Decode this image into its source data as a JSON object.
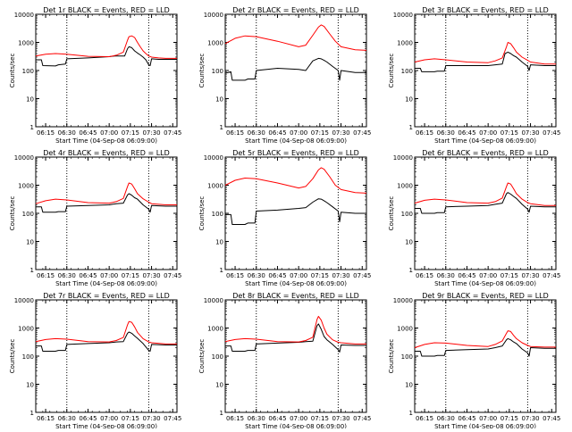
{
  "chart_data": {
    "type": "line",
    "yscale": "log",
    "ylim": [
      1,
      10000
    ],
    "yticks": [
      "1",
      "10",
      "100",
      "1000",
      "10000"
    ],
    "xlim": [
      "06:08",
      "07:48"
    ],
    "xticks": [
      "06:15",
      "06:30",
      "06:45",
      "07:00",
      "07:15",
      "07:30",
      "07:45"
    ],
    "ylabel": "Counts/sec",
    "xlabel": "Start Time (04-Sep-08 06:09:00)",
    "colors": {
      "black": "#000000",
      "red": "#ff0000",
      "vline": "#000000"
    },
    "panels": [
      {
        "title": "Det 1r BLACK = Events, RED = LLD",
        "vlines": [
          "06:30",
          "07:28"
        ],
        "series": [
          {
            "color": "black",
            "x": [
              "06:08",
              "06:12",
              "06:13",
              "06:22",
              "06:24",
              "06:29",
              "06:30",
              "06:45",
              "07:00",
              "07:04",
              "07:08",
              "07:11",
              "07:13",
              "07:14",
              "07:16",
              "07:18",
              "07:20",
              "07:22",
              "07:24",
              "07:26",
              "07:28",
              "07:29",
              "07:30",
              "07:35",
              "07:40",
              "07:48"
            ],
            "y": [
              240,
              240,
              150,
              145,
              160,
              170,
              260,
              280,
              310,
              330,
              330,
              330,
              600,
              700,
              650,
              500,
              420,
              360,
              300,
              240,
              160,
              150,
              260,
              250,
              250,
              250
            ]
          },
          {
            "color": "red",
            "x": [
              "06:08",
              "06:15",
              "06:22",
              "06:30",
              "06:45",
              "07:00",
              "07:05",
              "07:10",
              "07:13",
              "07:14",
              "07:16",
              "07:18",
              "07:20",
              "07:22",
              "07:24",
              "07:26",
              "07:28",
              "07:30",
              "07:35",
              "07:40",
              "07:48"
            ],
            "y": [
              330,
              380,
              400,
              380,
              320,
              310,
              350,
              450,
              1200,
              1600,
              1700,
              1500,
              1000,
              700,
              500,
              400,
              330,
              300,
              280,
              270,
              270
            ]
          }
        ]
      },
      {
        "title": "Det 2r BLACK = Events, RED = LLD",
        "vlines": [
          "06:30",
          "07:28"
        ],
        "series": [
          {
            "color": "black",
            "x": [
              "06:08",
              "06:12",
              "06:13",
              "06:22",
              "06:24",
              "06:29",
              "06:30",
              "06:45",
              "07:00",
              "07:05",
              "07:10",
              "07:14",
              "07:16",
              "07:18",
              "07:20",
              "07:24",
              "07:28",
              "07:29",
              "07:30",
              "07:40",
              "07:48"
            ],
            "y": [
              80,
              90,
              45,
              45,
              50,
              50,
              100,
              120,
              110,
              100,
              220,
              270,
              260,
              230,
              200,
              140,
              100,
              45,
              100,
              85,
              85
            ]
          },
          {
            "color": "red",
            "x": [
              "06:08",
              "06:15",
              "06:22",
              "06:30",
              "06:45",
              "07:00",
              "07:05",
              "07:10",
              "07:14",
              "07:16",
              "07:18",
              "07:22",
              "07:26",
              "07:30",
              "07:40",
              "07:48"
            ],
            "y": [
              900,
              1400,
              1700,
              1600,
              1100,
              700,
              800,
              1800,
              3500,
              4200,
              3700,
              2000,
              1100,
              700,
              550,
              520
            ]
          }
        ]
      },
      {
        "title": "Det 3r BLACK = Events, RED = LLD",
        "vlines": [
          "06:30",
          "07:28"
        ],
        "series": [
          {
            "color": "black",
            "x": [
              "06:08",
              "06:12",
              "06:13",
              "06:22",
              "06:24",
              "06:29",
              "06:30",
              "06:45",
              "07:00",
              "07:05",
              "07:10",
              "07:12",
              "07:14",
              "07:16",
              "07:18",
              "07:20",
              "07:24",
              "07:28",
              "07:29",
              "07:30",
              "07:40",
              "07:48"
            ],
            "y": [
              120,
              120,
              90,
              90,
              95,
              95,
              150,
              150,
              150,
              160,
              170,
              400,
              450,
              400,
              340,
              300,
              200,
              140,
              100,
              160,
              150,
              150
            ]
          },
          {
            "color": "red",
            "x": [
              "06:08",
              "06:15",
              "06:22",
              "06:30",
              "06:45",
              "07:00",
              "07:05",
              "07:10",
              "07:13",
              "07:14",
              "07:16",
              "07:18",
              "07:20",
              "07:24",
              "07:28",
              "07:30",
              "07:40",
              "07:48"
            ],
            "y": [
              200,
              240,
              260,
              240,
              200,
              190,
              220,
              280,
              700,
              1000,
              900,
              650,
              450,
              300,
              230,
              200,
              170,
              170
            ]
          }
        ]
      },
      {
        "title": "Det 4r BLACK = Events, RED = LLD",
        "vlines": [
          "06:30",
          "07:28"
        ],
        "series": [
          {
            "color": "black",
            "x": [
              "06:08",
              "06:12",
              "06:13",
              "06:22",
              "06:24",
              "06:29",
              "06:30",
              "06:45",
              "07:00",
              "07:05",
              "07:10",
              "07:13",
              "07:14",
              "07:16",
              "07:18",
              "07:20",
              "07:24",
              "07:28",
              "07:29",
              "07:30",
              "07:40",
              "07:48"
            ],
            "y": [
              170,
              170,
              110,
              110,
              115,
              115,
              180,
              190,
              200,
              220,
              230,
              450,
              500,
              440,
              360,
              320,
              200,
              140,
              110,
              190,
              180,
              180
            ]
          },
          {
            "color": "red",
            "x": [
              "06:08",
              "06:15",
              "06:22",
              "06:30",
              "06:45",
              "07:00",
              "07:05",
              "07:10",
              "07:13",
              "07:14",
              "07:16",
              "07:18",
              "07:20",
              "07:24",
              "07:28",
              "07:30",
              "07:40",
              "07:48"
            ],
            "y": [
              220,
              280,
              320,
              300,
              240,
              230,
              260,
              340,
              900,
              1200,
              1100,
              750,
              500,
              330,
              250,
              220,
              200,
              200
            ]
          }
        ]
      },
      {
        "title": "Det 5r BLACK = Events, RED = LLD",
        "vlines": [
          "06:30",
          "07:28"
        ],
        "series": [
          {
            "color": "black",
            "x": [
              "06:08",
              "06:12",
              "06:13",
              "06:22",
              "06:24",
              "06:29",
              "06:30",
              "06:45",
              "07:00",
              "07:05",
              "07:10",
              "07:14",
              "07:16",
              "07:18",
              "07:20",
              "07:24",
              "07:28",
              "07:29",
              "07:30",
              "07:40",
              "07:48"
            ],
            "y": [
              90,
              90,
              40,
              40,
              45,
              45,
              120,
              130,
              150,
              160,
              250,
              330,
              320,
              280,
              240,
              170,
              120,
              50,
              110,
              100,
              100
            ]
          },
          {
            "color": "red",
            "x": [
              "06:08",
              "06:15",
              "06:22",
              "06:30",
              "06:45",
              "07:00",
              "07:05",
              "07:10",
              "07:14",
              "07:16",
              "07:18",
              "07:22",
              "07:26",
              "07:30",
              "07:40",
              "07:48"
            ],
            "y": [
              1000,
              1500,
              1800,
              1700,
              1200,
              800,
              900,
              1700,
              3500,
              4200,
              3700,
              2000,
              1000,
              700,
              550,
              520
            ]
          }
        ]
      },
      {
        "title": "Det 6r BLACK = Events, RED = LLD",
        "vlines": [
          "06:30",
          "07:28"
        ],
        "series": [
          {
            "color": "black",
            "x": [
              "06:08",
              "06:12",
              "06:13",
              "06:22",
              "06:24",
              "06:29",
              "06:30",
              "06:45",
              "07:00",
              "07:05",
              "07:10",
              "07:13",
              "07:14",
              "07:16",
              "07:18",
              "07:20",
              "07:24",
              "07:28",
              "07:29",
              "07:30",
              "07:40",
              "07:48"
            ],
            "y": [
              150,
              150,
              100,
              100,
              105,
              105,
              170,
              180,
              190,
              210,
              230,
              500,
              550,
              480,
              400,
              340,
              210,
              140,
              110,
              180,
              170,
              170
            ]
          },
          {
            "color": "red",
            "x": [
              "06:08",
              "06:15",
              "06:22",
              "06:30",
              "06:45",
              "07:00",
              "07:05",
              "07:10",
              "07:13",
              "07:14",
              "07:16",
              "07:18",
              "07:20",
              "07:24",
              "07:28",
              "07:30",
              "07:40",
              "07:48"
            ],
            "y": [
              230,
              290,
              320,
              300,
              240,
              230,
              260,
              350,
              900,
              1200,
              1100,
              750,
              500,
              320,
              240,
              220,
              190,
              190
            ]
          }
        ]
      },
      {
        "title": "Det 7r BLACK = Events, RED = LLD",
        "vlines": [
          "06:30",
          "07:28"
        ],
        "series": [
          {
            "color": "black",
            "x": [
              "06:08",
              "06:12",
              "06:13",
              "06:22",
              "06:24",
              "06:29",
              "06:30",
              "06:45",
              "07:00",
              "07:05",
              "07:10",
              "07:13",
              "07:14",
              "07:16",
              "07:18",
              "07:20",
              "07:24",
              "07:28",
              "07:29",
              "07:30",
              "07:40",
              "07:48"
            ],
            "y": [
              230,
              230,
              150,
              150,
              160,
              160,
              260,
              280,
              300,
              320,
              330,
              650,
              720,
              650,
              520,
              430,
              280,
              160,
              150,
              260,
              250,
              250
            ]
          },
          {
            "color": "red",
            "x": [
              "06:08",
              "06:15",
              "06:22",
              "06:30",
              "06:45",
              "07:00",
              "07:05",
              "07:10",
              "07:13",
              "07:14",
              "07:16",
              "07:18",
              "07:20",
              "07:24",
              "07:28",
              "07:30",
              "07:40",
              "07:48"
            ],
            "y": [
              330,
              390,
              420,
              400,
              330,
              320,
              360,
              460,
              1300,
              1700,
              1600,
              1100,
              700,
              420,
              320,
              300,
              270,
              270
            ]
          }
        ]
      },
      {
        "title": "Det 8r BLACK = Events, RED = LLD",
        "vlines": [
          "06:30",
          "07:28"
        ],
        "series": [
          {
            "color": "black",
            "x": [
              "06:08",
              "06:12",
              "06:13",
              "06:22",
              "06:24",
              "06:29",
              "06:30",
              "06:45",
              "07:00",
              "07:05",
              "07:10",
              "07:13",
              "07:14",
              "07:16",
              "07:18",
              "07:20",
              "07:24",
              "07:28",
              "07:29",
              "07:30",
              "07:40",
              "07:48"
            ],
            "y": [
              230,
              230,
              150,
              150,
              160,
              160,
              270,
              290,
              310,
              330,
              340,
              1200,
              1400,
              900,
              500,
              380,
              260,
              170,
              140,
              250,
              240,
              240
            ]
          },
          {
            "color": "red",
            "x": [
              "06:08",
              "06:15",
              "06:22",
              "06:30",
              "06:45",
              "07:00",
              "07:05",
              "07:10",
              "07:13",
              "07:14",
              "07:16",
              "07:18",
              "07:20",
              "07:24",
              "07:28",
              "07:30",
              "07:40",
              "07:48"
            ],
            "y": [
              330,
              390,
              420,
              400,
              330,
              320,
              360,
              470,
              2000,
              2600,
              1900,
              1000,
              600,
              380,
              310,
              300,
              270,
              270
            ]
          }
        ]
      },
      {
        "title": "Det 9r BLACK = Events, RED = LLD",
        "vlines": [
          "06:30",
          "07:28"
        ],
        "series": [
          {
            "color": "black",
            "x": [
              "06:08",
              "06:12",
              "06:13",
              "06:22",
              "06:24",
              "06:29",
              "06:30",
              "06:45",
              "07:00",
              "07:05",
              "07:10",
              "07:13",
              "07:14",
              "07:16",
              "07:18",
              "07:20",
              "07:24",
              "07:28",
              "07:29",
              "07:30",
              "07:40",
              "07:48"
            ],
            "y": [
              150,
              150,
              100,
              100,
              105,
              105,
              160,
              170,
              180,
              200,
              230,
              380,
              420,
              380,
              320,
              280,
              180,
              130,
              100,
              200,
              190,
              190
            ]
          },
          {
            "color": "red",
            "x": [
              "06:08",
              "06:15",
              "06:22",
              "06:30",
              "06:45",
              "07:00",
              "07:05",
              "07:10",
              "07:13",
              "07:14",
              "07:16",
              "07:18",
              "07:20",
              "07:24",
              "07:28",
              "07:30",
              "07:40",
              "07:48"
            ],
            "y": [
              200,
              260,
              300,
              290,
              240,
              220,
              260,
              350,
              650,
              800,
              750,
              550,
              420,
              300,
              240,
              220,
              210,
              210
            ]
          }
        ]
      }
    ]
  }
}
